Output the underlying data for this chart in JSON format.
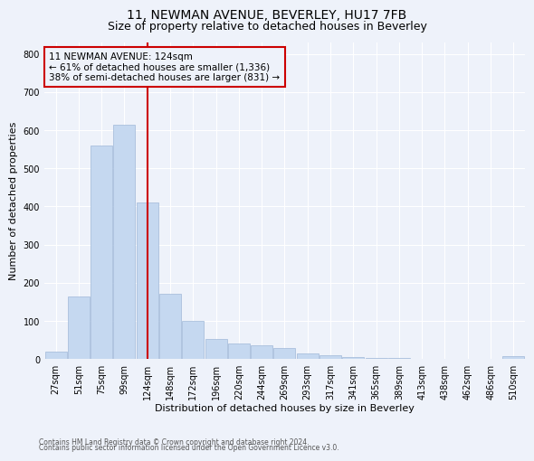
{
  "title": "11, NEWMAN AVENUE, BEVERLEY, HU17 7FB",
  "subtitle": "Size of property relative to detached houses in Beverley",
  "xlabel": "Distribution of detached houses by size in Beverley",
  "ylabel": "Number of detached properties",
  "footnote1": "Contains HM Land Registry data © Crown copyright and database right 2024.",
  "footnote2": "Contains public sector information licensed under the Open Government Licence v3.0.",
  "bar_labels": [
    "27sqm",
    "51sqm",
    "75sqm",
    "99sqm",
    "124sqm",
    "148sqm",
    "172sqm",
    "196sqm",
    "220sqm",
    "244sqm",
    "269sqm",
    "293sqm",
    "317sqm",
    "341sqm",
    "365sqm",
    "389sqm",
    "413sqm",
    "438sqm",
    "462sqm",
    "486sqm",
    "510sqm"
  ],
  "bar_values": [
    20,
    165,
    560,
    615,
    410,
    170,
    100,
    52,
    40,
    35,
    28,
    15,
    10,
    5,
    4,
    2,
    0,
    0,
    0,
    0,
    8
  ],
  "bar_color": "#c5d8f0",
  "bar_edge_color": "#a0b8d8",
  "vline_x_index": 4,
  "vline_color": "#cc0000",
  "annotation_line1": "11 NEWMAN AVENUE: 124sqm",
  "annotation_line2": "← 61% of detached houses are smaller (1,336)",
  "annotation_line3": "38% of semi-detached houses are larger (831) →",
  "annotation_box_color": "#cc0000",
  "ylim": [
    0,
    830
  ],
  "yticks": [
    0,
    100,
    200,
    300,
    400,
    500,
    600,
    700,
    800
  ],
  "background_color": "#eef2fa",
  "grid_color": "#ffffff",
  "title_fontsize": 10,
  "subtitle_fontsize": 9,
  "ylabel_fontsize": 8,
  "xlabel_fontsize": 8,
  "tick_fontsize": 7,
  "annotation_fontsize": 7.5,
  "footnote_fontsize": 5.5
}
